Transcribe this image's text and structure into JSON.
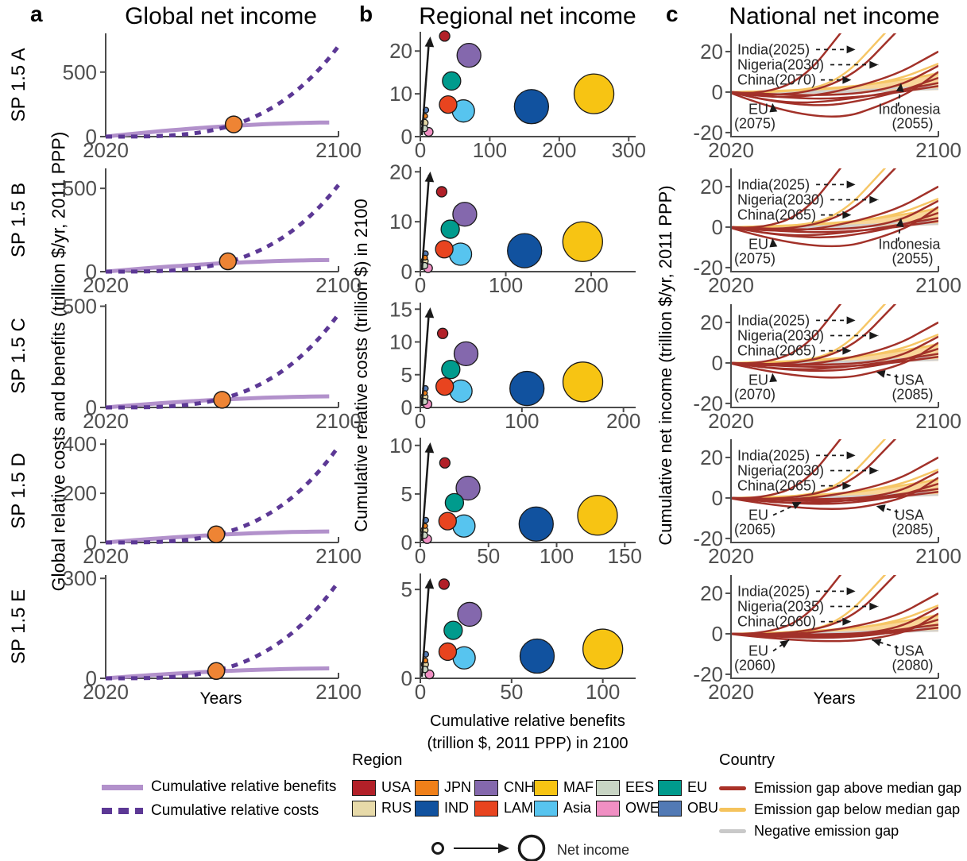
{
  "chart_data": [
    {
      "id": "a",
      "type": "line",
      "panel_label": "a",
      "title": "Global net income",
      "xlabel": "Years",
      "ylabel": "Global relative costs and benefits (trillion $/yr, 2011 PPP)",
      "x_range": [
        2020,
        2100
      ],
      "x_ticks": [
        2020,
        2100
      ],
      "rows": [
        {
          "scenario": "SP 1.5 A",
          "y_ticks": [
            0,
            500
          ],
          "y_max": 800,
          "benefits_2100": 110,
          "costs_2100": 700,
          "break_even": {
            "year": 2064,
            "value": 95
          }
        },
        {
          "scenario": "SP 1.5 B",
          "y_ticks": [
            0,
            500
          ],
          "y_max": 620,
          "benefits_2100": 70,
          "costs_2100": 520,
          "break_even": {
            "year": 2062,
            "value": 62
          }
        },
        {
          "scenario": "SP 1.5 C",
          "y_ticks": [
            0,
            500
          ],
          "y_max": 510,
          "benefits_2100": 55,
          "costs_2100": 460,
          "break_even": {
            "year": 2060,
            "value": 38
          }
        },
        {
          "scenario": "SP 1.5 D",
          "y_ticks": [
            0,
            200,
            400
          ],
          "y_max": 420,
          "benefits_2100": 45,
          "costs_2100": 390,
          "break_even": {
            "year": 2058,
            "value": 33
          }
        },
        {
          "scenario": "SP 1.5 E",
          "y_ticks": [
            0,
            300
          ],
          "y_max": 310,
          "benefits_2100": 30,
          "costs_2100": 290,
          "break_even": {
            "year": 2058,
            "value": 22
          }
        }
      ]
    },
    {
      "id": "b",
      "type": "bubble",
      "panel_label": "b",
      "title": "Regional net income",
      "xlabel": "Cumulative relative benefits\n(trillion $, 2011 PPP) in 2100",
      "ylabel": "Cumulative relative costs (trillion $) in 2100",
      "rows": [
        {
          "scenario": "SP 1.5 A",
          "x_ticks": [
            0,
            100,
            200,
            300
          ],
          "x_max": 310,
          "y_ticks": [
            0,
            10,
            20
          ],
          "y_max": 24.5,
          "bubbles": [
            {
              "region": "MAF",
              "x": 250,
              "y": 10
            },
            {
              "region": "IND",
              "x": 160,
              "y": 7
            },
            {
              "region": "CNH",
              "x": 70,
              "y": 19
            },
            {
              "region": "Asia",
              "x": 62,
              "y": 6
            },
            {
              "region": "EU",
              "x": 45,
              "y": 13
            },
            {
              "region": "LAM",
              "x": 40,
              "y": 7.5
            },
            {
              "region": "USA",
              "x": 35,
              "y": 23.5
            },
            {
              "region": "OWE",
              "x": 12,
              "y": 1.1
            },
            {
              "region": "OBU",
              "x": 8,
              "y": 6.2
            },
            {
              "region": "JPN",
              "x": 7,
              "y": 4.8
            },
            {
              "region": "RUS",
              "x": 6,
              "y": 3.2
            },
            {
              "region": "EES",
              "x": 6,
              "y": 1.9
            }
          ]
        },
        {
          "scenario": "SP 1.5 B",
          "x_ticks": [
            0,
            100,
            200
          ],
          "x_max": 252,
          "y_ticks": [
            0,
            10,
            20
          ],
          "y_max": 21,
          "bubbles": [
            {
              "region": "MAF",
              "x": 190,
              "y": 6
            },
            {
              "region": "IND",
              "x": 122,
              "y": 4.2
            },
            {
              "region": "CNH",
              "x": 52,
              "y": 11.5
            },
            {
              "region": "Asia",
              "x": 47,
              "y": 3.5
            },
            {
              "region": "EU",
              "x": 35,
              "y": 8.5
            },
            {
              "region": "LAM",
              "x": 28,
              "y": 4.5
            },
            {
              "region": "USA",
              "x": 25,
              "y": 16
            },
            {
              "region": "OWE",
              "x": 9,
              "y": 0.7
            },
            {
              "region": "OBU",
              "x": 6,
              "y": 3.6
            },
            {
              "region": "JPN",
              "x": 5.5,
              "y": 2.8
            },
            {
              "region": "RUS",
              "x": 5,
              "y": 2.1
            },
            {
              "region": "EES",
              "x": 5,
              "y": 1.2
            }
          ]
        },
        {
          "scenario": "SP 1.5 C",
          "x_ticks": [
            0,
            100,
            200
          ],
          "x_max": 212,
          "y_ticks": [
            0,
            5,
            10,
            15
          ],
          "y_max": 16,
          "bubbles": [
            {
              "region": "MAF",
              "x": 160,
              "y": 3.9
            },
            {
              "region": "IND",
              "x": 105,
              "y": 2.9
            },
            {
              "region": "CNH",
              "x": 45,
              "y": 8.2
            },
            {
              "region": "Asia",
              "x": 40,
              "y": 2.5
            },
            {
              "region": "EU",
              "x": 30,
              "y": 5.8
            },
            {
              "region": "LAM",
              "x": 24,
              "y": 3.2
            },
            {
              "region": "USA",
              "x": 22,
              "y": 11.3
            },
            {
              "region": "OWE",
              "x": 7,
              "y": 0.5
            },
            {
              "region": "OBU",
              "x": 5,
              "y": 2.9
            },
            {
              "region": "JPN",
              "x": 4.5,
              "y": 2.2
            },
            {
              "region": "RUS",
              "x": 4,
              "y": 1.6
            },
            {
              "region": "EES",
              "x": 4,
              "y": 0.9
            }
          ]
        },
        {
          "scenario": "SP 1.5 D",
          "x_ticks": [
            0,
            50,
            100,
            150
          ],
          "x_max": 158,
          "y_ticks": [
            0,
            5,
            10
          ],
          "y_max": 10.8,
          "bubbles": [
            {
              "region": "MAF",
              "x": 130,
              "y": 2.8
            },
            {
              "region": "IND",
              "x": 85,
              "y": 1.9
            },
            {
              "region": "CNH",
              "x": 35,
              "y": 5.6
            },
            {
              "region": "Asia",
              "x": 32,
              "y": 1.7
            },
            {
              "region": "EU",
              "x": 25,
              "y": 4.1
            },
            {
              "region": "LAM",
              "x": 20,
              "y": 2.2
            },
            {
              "region": "USA",
              "x": 18,
              "y": 8.2
            },
            {
              "region": "OWE",
              "x": 5,
              "y": 0.35
            },
            {
              "region": "OBU",
              "x": 4,
              "y": 2.3
            },
            {
              "region": "JPN",
              "x": 3.5,
              "y": 1.7
            },
            {
              "region": "RUS",
              "x": 3,
              "y": 1.25
            },
            {
              "region": "EES",
              "x": 3,
              "y": 0.75
            }
          ]
        },
        {
          "scenario": "SP 1.5 E",
          "x_ticks": [
            0,
            50,
            100
          ],
          "x_max": 118,
          "y_ticks": [
            0,
            5
          ],
          "y_max": 5.9,
          "bubbles": [
            {
              "region": "MAF",
              "x": 100,
              "y": 1.65
            },
            {
              "region": "IND",
              "x": 64,
              "y": 1.25
            },
            {
              "region": "CNH",
              "x": 27,
              "y": 3.6
            },
            {
              "region": "Asia",
              "x": 24,
              "y": 1.15
            },
            {
              "region": "EU",
              "x": 18,
              "y": 2.7
            },
            {
              "region": "LAM",
              "x": 15,
              "y": 1.5
            },
            {
              "region": "USA",
              "x": 13,
              "y": 5.3
            },
            {
              "region": "OWE",
              "x": 5,
              "y": 0.22
            },
            {
              "region": "OBU",
              "x": 3,
              "y": 1.35
            },
            {
              "region": "JPN",
              "x": 2.8,
              "y": 1.0
            },
            {
              "region": "RUS",
              "x": 2.5,
              "y": 0.78
            },
            {
              "region": "EES",
              "x": 2.5,
              "y": 0.5
            }
          ]
        }
      ]
    },
    {
      "id": "c",
      "type": "line-family",
      "panel_label": "c",
      "title": "National net income",
      "xlabel": "Years",
      "ylabel": "Cumulative net income (trillion $/yr, 2011 PPP)",
      "x_range": [
        2020,
        2100
      ],
      "x_ticks": [
        2020,
        2100
      ],
      "y_ticks": [
        -20,
        0,
        20
      ],
      "y_range": [
        -22,
        29
      ],
      "colors": {
        "above": "#a23129",
        "below": "#f6c666",
        "negative": "#cfcfcf",
        "band": "#f8d18f"
      },
      "base_curves": {
        "red": [
          [
            [
              2020,
              0
            ],
            [
              2030,
              -1.5
            ],
            [
              2048,
              6
            ],
            [
              2064,
              32
            ]
          ],
          [
            [
              2020,
              0
            ],
            [
              2040,
              -3
            ],
            [
              2066,
              6
            ],
            [
              2084,
              30
            ]
          ],
          [
            [
              2020,
              0
            ],
            [
              2042,
              -5
            ],
            [
              2080,
              6
            ],
            [
              2100,
              20
            ]
          ],
          [
            [
              2020,
              -0.5
            ],
            [
              2054,
              -17
            ],
            [
              2086,
              -3
            ],
            [
              2100,
              10
            ]
          ],
          [
            [
              2020,
              0
            ],
            [
              2048,
              -9
            ],
            [
              2080,
              -2
            ],
            [
              2100,
              7
            ]
          ],
          [
            [
              2020,
              0
            ],
            [
              2038,
              -6
            ],
            [
              2065,
              -4
            ],
            [
              2100,
              4.5
            ]
          ],
          [
            [
              2020,
              0
            ],
            [
              2046,
              -4
            ],
            [
              2075,
              -2
            ],
            [
              2100,
              3
            ]
          ],
          [
            [
              2020,
              0
            ],
            [
              2052,
              -2.5
            ],
            [
              2082,
              1
            ],
            [
              2100,
              13
            ]
          ]
        ],
        "yellow": [
          [
            [
              2020,
              0
            ],
            [
              2042,
              -0.5
            ],
            [
              2062,
              5
            ],
            [
              2080,
              30
            ]
          ],
          [
            [
              2020,
              0
            ],
            [
              2052,
              0.5
            ],
            [
              2082,
              5
            ],
            [
              2100,
              14
            ]
          ],
          [
            [
              2020,
              0
            ],
            [
              2060,
              1
            ],
            [
              2100,
              9
            ]
          ]
        ],
        "gray": [
          [
            [
              2020,
              0
            ],
            [
              2060,
              0.3
            ],
            [
              2100,
              3
            ]
          ],
          [
            [
              2020,
              -0.3
            ],
            [
              2060,
              -0.6
            ],
            [
              2100,
              1.5
            ]
          ]
        ],
        "band_top": [
          [
            2020,
            0.4
          ],
          [
            2055,
            1.5
          ],
          [
            2080,
            4.5
          ],
          [
            2100,
            10
          ]
        ],
        "band_bottom": [
          [
            2020,
            -0.6
          ],
          [
            2060,
            -0.8
          ],
          [
            2100,
            1
          ]
        ]
      },
      "rows": [
        {
          "scenario": "SP 1.5 A",
          "dip_scale": 1.0,
          "eu_target": [
            0.2,
            -5.5
          ],
          "right_target": [
            0.82,
            4.5
          ],
          "annotations": {
            "india": "India(2025)",
            "nigeria": "Nigeria(2030)",
            "china": "China(2070)",
            "eu": "EU",
            "eu_year": "(2075)",
            "right": "Indonesia",
            "right_year": "(2055)"
          }
        },
        {
          "scenario": "SP 1.5 B",
          "dip_scale": 0.78,
          "eu_target": [
            0.2,
            -5.5
          ],
          "right_target": [
            0.82,
            4.5
          ],
          "annotations": {
            "india": "India(2025)",
            "nigeria": "Nigeria(2030)",
            "china": "China(2065)",
            "eu": "EU",
            "eu_year": "(2075)",
            "right": "Indonesia",
            "right_year": "(2055)"
          }
        },
        {
          "scenario": "SP 1.5 C",
          "dip_scale": 0.6,
          "eu_target": [
            0.2,
            -5
          ],
          "right_target": [
            0.7,
            -4.5
          ],
          "annotations": {
            "india": "India(2025)",
            "nigeria": "Nigeria(2030)",
            "china": "China(2065)",
            "eu": "EU",
            "eu_year": "(2070)",
            "right": "USA",
            "right_year": "(2085)"
          }
        },
        {
          "scenario": "SP 1.5 D",
          "dip_scale": 0.45,
          "eu_target": [
            0.34,
            -2
          ],
          "right_target": [
            0.7,
            -4
          ],
          "annotations": {
            "india": "India(2025)",
            "nigeria": "Nigeria(2030)",
            "china": "China(2065)",
            "eu": "EU",
            "eu_year": "(2065)",
            "right": "USA",
            "right_year": "(2085)"
          }
        },
        {
          "scenario": "SP 1.5 E",
          "dip_scale": 0.3,
          "eu_target": [
            0.28,
            -3
          ],
          "right_target": [
            0.68,
            -3
          ],
          "annotations": {
            "india": "India(2025)",
            "nigeria": "Nigeria(2035)",
            "china": "China(2060)",
            "eu": "EU",
            "eu_year": "(2060)",
            "right": "USA",
            "right_year": "(2080)"
          }
        }
      ]
    }
  ],
  "legends": {
    "panel_a": [
      {
        "label": "Cumulative relative benefits",
        "style": "solid",
        "color": "#b291cb"
      },
      {
        "label": "Cumulative relative costs",
        "style": "dashed",
        "color": "#5c3895"
      }
    ],
    "region": {
      "title": "Region",
      "items": [
        {
          "code": "USA",
          "color": "#b22028",
          "r": 6.5
        },
        {
          "code": "JPN",
          "color": "#f08019",
          "r": 3
        },
        {
          "code": "CNH",
          "color": "#8468ad",
          "r": 15
        },
        {
          "code": "MAF",
          "color": "#f7c413",
          "r": 25
        },
        {
          "code": "EES",
          "color": "#c8d5c4",
          "r": 4
        },
        {
          "code": "EU",
          "color": "#009b8d",
          "r": 11.5
        },
        {
          "code": "RUS",
          "color": "#e7daa9",
          "r": 4.5
        },
        {
          "code": "IND",
          "color": "#11529f",
          "r": 21.5
        },
        {
          "code": "LAM",
          "color": "#e8441f",
          "r": 11
        },
        {
          "code": "Asia",
          "color": "#57c4ef",
          "r": 14
        },
        {
          "code": "OWE",
          "color": "#f08fc3",
          "r": 5.5
        },
        {
          "code": "OBU",
          "color": "#527ab5",
          "r": 3.5
        }
      ]
    },
    "country": {
      "title": "Country",
      "items": [
        {
          "label": "Emission gap above median gap",
          "color": "#a93127"
        },
        {
          "label": "Emission gap below median gap",
          "color": "#f5c35d"
        },
        {
          "label": "Negative emission gap",
          "color": "#c9c9c9"
        }
      ]
    },
    "size": {
      "label": "Net income"
    },
    "break_even_color": "#ee8434"
  }
}
